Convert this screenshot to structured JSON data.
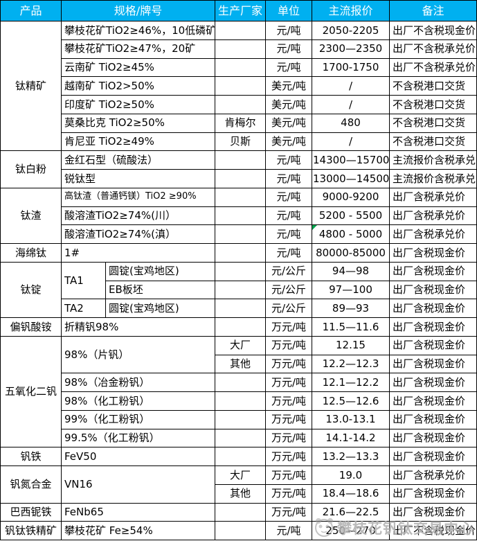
{
  "table": {
    "header": [
      {
        "k": "product",
        "t": "产品"
      },
      {
        "k": "spec",
        "t": "规格/牌号",
        "cs": 2
      },
      {
        "k": "producer",
        "t": "生产厂家"
      },
      {
        "k": "unit",
        "t": "单位"
      },
      {
        "k": "price",
        "t": "主流报价"
      },
      {
        "k": "note",
        "t": "备注"
      }
    ],
    "rows": [
      [
        {
          "k": "product",
          "t": "钛精矿",
          "rs": 7
        },
        {
          "k": "spec",
          "t": "攀枝花矿TiO2≥46%，10低磷矿",
          "cs": 2
        },
        {
          "k": "producer",
          "t": ""
        },
        {
          "k": "unit",
          "t": "元/吨"
        },
        {
          "k": "price",
          "t": "2050-2205"
        },
        {
          "k": "note",
          "t": "出厂不含税现金价"
        }
      ],
      [
        {
          "k": "spec",
          "t": "攀枝花矿TiO2≥47%，20矿",
          "cs": 2
        },
        {
          "k": "producer",
          "t": ""
        },
        {
          "k": "unit",
          "t": "元/吨"
        },
        {
          "k": "price",
          "t": "2300—2350"
        },
        {
          "k": "note",
          "t": "出厂不含税承兑价"
        }
      ],
      [
        {
          "k": "spec",
          "t": "云南矿 TiO2≥45%",
          "cs": 2
        },
        {
          "k": "producer",
          "t": ""
        },
        {
          "k": "unit",
          "t": "元/吨"
        },
        {
          "k": "price",
          "t": "1700-1750"
        },
        {
          "k": "note",
          "t": "出厂不含税承兑价"
        }
      ],
      [
        {
          "k": "spec",
          "t": "越南矿 TiO2>50%",
          "cs": 2
        },
        {
          "k": "producer",
          "t": ""
        },
        {
          "k": "unit",
          "t": "美元/吨"
        },
        {
          "k": "price",
          "t": "/"
        },
        {
          "k": "note",
          "t": "不含税港口交货"
        }
      ],
      [
        {
          "k": "spec",
          "t": "印度矿 TiO2≥50%",
          "cs": 2
        },
        {
          "k": "producer",
          "t": ""
        },
        {
          "k": "unit",
          "t": "美元/吨"
        },
        {
          "k": "price",
          "t": "/"
        },
        {
          "k": "note",
          "t": "不含税港口交货"
        }
      ],
      [
        {
          "k": "spec",
          "t": "莫桑比克 TiO2≥50%",
          "cs": 2
        },
        {
          "k": "producer",
          "t": "肯梅尔"
        },
        {
          "k": "unit",
          "t": "美元/吨"
        },
        {
          "k": "price",
          "t": "480"
        },
        {
          "k": "note",
          "t": "不含税港口交货"
        }
      ],
      [
        {
          "k": "spec",
          "t": "肯尼亚 TiO2≥49%",
          "cs": 2
        },
        {
          "k": "producer",
          "t": "贝斯"
        },
        {
          "k": "unit",
          "t": "美元/吨"
        },
        {
          "k": "price",
          "t": "/"
        },
        {
          "k": "note",
          "t": "不含税港口交货"
        }
      ],
      [
        {
          "k": "product",
          "t": "钛白粉",
          "rs": 2
        },
        {
          "k": "spec",
          "t": "金红石型（硫酸法）",
          "cs": 2
        },
        {
          "k": "producer",
          "t": ""
        },
        {
          "k": "unit",
          "t": "元/吨"
        },
        {
          "k": "price",
          "t": "14300—15700"
        },
        {
          "k": "note",
          "t": "主流报价含税承兑"
        }
      ],
      [
        {
          "k": "spec",
          "t": "锐钛型",
          "cs": 2
        },
        {
          "k": "producer",
          "t": ""
        },
        {
          "k": "unit",
          "t": "元/吨"
        },
        {
          "k": "price",
          "t": "13000—14500"
        },
        {
          "k": "note",
          "t": "主流报价含税承兑"
        }
      ],
      [
        {
          "k": "product",
          "t": "钛渣",
          "rs": 3
        },
        {
          "k": "spec",
          "t": "高钛渣（普通钙镁）TiO2 ≥90%",
          "cs": 2,
          "sm": true
        },
        {
          "k": "producer",
          "t": ""
        },
        {
          "k": "unit",
          "t": "元/吨"
        },
        {
          "k": "price",
          "t": "9000-9200"
        },
        {
          "k": "note",
          "t": "出厂含税承兑价"
        }
      ],
      [
        {
          "k": "spec",
          "t": "酸溶渣TiO2≥74%(川）",
          "cs": 2
        },
        {
          "k": "producer",
          "t": ""
        },
        {
          "k": "unit",
          "t": "元/吨"
        },
        {
          "k": "price",
          "t": "5200 - 5500"
        },
        {
          "k": "note",
          "t": "出厂含税承兑价"
        }
      ],
      [
        {
          "k": "spec",
          "t": "酸溶渣TiO2≥74%(滇）",
          "cs": 2
        },
        {
          "k": "producer",
          "t": ""
        },
        {
          "k": "unit",
          "t": "元/吨"
        },
        {
          "k": "price",
          "t": "4800 - 5000",
          "flag": true
        },
        {
          "k": "note",
          "t": "出厂含税承兑价"
        }
      ],
      [
        {
          "k": "product",
          "t": "海绵钛"
        },
        {
          "k": "spec",
          "t": "1#",
          "cs": 2
        },
        {
          "k": "producer",
          "t": ""
        },
        {
          "k": "unit",
          "t": "元/吨"
        },
        {
          "k": "price",
          "t": "80000-85000"
        },
        {
          "k": "note",
          "t": "出厂含税现金价"
        }
      ],
      [
        {
          "k": "product",
          "t": "钛锭",
          "rs": 3
        },
        {
          "k": "grade",
          "t": "TA1",
          "rs": 2
        },
        {
          "k": "spec",
          "t": "圆锭(宝鸡地区)"
        },
        {
          "k": "producer",
          "t": ""
        },
        {
          "k": "unit",
          "t": "元/公斤"
        },
        {
          "k": "price",
          "t": "94—98"
        },
        {
          "k": "note",
          "t": "出厂含税现金价"
        }
      ],
      [
        {
          "k": "spec",
          "t": "EB板坯"
        },
        {
          "k": "producer",
          "t": ""
        },
        {
          "k": "unit",
          "t": "元/公斤"
        },
        {
          "k": "price",
          "t": "97—100"
        },
        {
          "k": "note",
          "t": "出厂含税现金价"
        }
      ],
      [
        {
          "k": "grade",
          "t": "TA2"
        },
        {
          "k": "spec",
          "t": "圆锭(宝鸡地区)"
        },
        {
          "k": "producer",
          "t": ""
        },
        {
          "k": "unit",
          "t": "元/公斤"
        },
        {
          "k": "price",
          "t": "89—93"
        },
        {
          "k": "note",
          "t": "出厂含税现金价"
        }
      ],
      [
        {
          "k": "product",
          "t": "偏钒酸铵"
        },
        {
          "k": "spec",
          "t": "折精钒98%",
          "cs": 2
        },
        {
          "k": "producer",
          "t": ""
        },
        {
          "k": "unit",
          "t": "万元/吨"
        },
        {
          "k": "price",
          "t": "11.5—11.6"
        },
        {
          "k": "note",
          "t": "出厂含税现金价"
        }
      ],
      [
        {
          "k": "product",
          "t": "五氧化二钒",
          "rs": 6
        },
        {
          "k": "spec",
          "t": "98%（片钒）",
          "cs": 2,
          "rs": 2
        },
        {
          "k": "producer",
          "t": "大厂"
        },
        {
          "k": "unit",
          "t": "万元/吨"
        },
        {
          "k": "price",
          "t": "12.15"
        },
        {
          "k": "note",
          "t": "出厂含税现金价"
        }
      ],
      [
        {
          "k": "producer",
          "t": "其他"
        },
        {
          "k": "unit",
          "t": "万元/吨"
        },
        {
          "k": "price",
          "t": "12.2—12.3"
        },
        {
          "k": "note",
          "t": "出厂含税现金价"
        }
      ],
      [
        {
          "k": "spec",
          "t": "98%（冶金粉钒）",
          "cs": 2
        },
        {
          "k": "producer",
          "t": ""
        },
        {
          "k": "unit",
          "t": "万元/吨"
        },
        {
          "k": "price",
          "t": "12.1—12.2"
        },
        {
          "k": "note",
          "t": "出厂含税现金价"
        }
      ],
      [
        {
          "k": "spec",
          "t": "98%（化工粉钒）",
          "cs": 2
        },
        {
          "k": "producer",
          "t": ""
        },
        {
          "k": "unit",
          "t": "万元/吨"
        },
        {
          "k": "price",
          "t": "12.5—12.6"
        },
        {
          "k": "note",
          "t": "出厂含税现金价"
        }
      ],
      [
        {
          "k": "spec",
          "t": "99%（化工粉钒）",
          "cs": 2
        },
        {
          "k": "producer",
          "t": ""
        },
        {
          "k": "unit",
          "t": "万元/吨"
        },
        {
          "k": "price",
          "t": "13.0-13.1"
        },
        {
          "k": "note",
          "t": "出厂含税现金价"
        }
      ],
      [
        {
          "k": "spec",
          "t": "99.5%（化工粉钒）",
          "cs": 2
        },
        {
          "k": "producer",
          "t": ""
        },
        {
          "k": "unit",
          "t": "万元/吨"
        },
        {
          "k": "price",
          "t": "14.1-14.2"
        },
        {
          "k": "note",
          "t": "出厂含税现金价"
        }
      ],
      [
        {
          "k": "product",
          "t": "钒铁"
        },
        {
          "k": "spec",
          "t": "FeV50",
          "cs": 2
        },
        {
          "k": "producer",
          "t": ""
        },
        {
          "k": "unit",
          "t": "万元/吨"
        },
        {
          "k": "price",
          "t": "13.2—13.3"
        },
        {
          "k": "note",
          "t": "出厂含税现金价"
        }
      ],
      [
        {
          "k": "product",
          "t": "钒氮合金",
          "rs": 2
        },
        {
          "k": "spec",
          "t": "VN16",
          "cs": 2,
          "rs": 2
        },
        {
          "k": "producer",
          "t": "大厂"
        },
        {
          "k": "unit",
          "t": "万元/吨"
        },
        {
          "k": "price",
          "t": "19.0"
        },
        {
          "k": "note",
          "t": "出厂含税承兑价"
        }
      ],
      [
        {
          "k": "producer",
          "t": "其他"
        },
        {
          "k": "unit",
          "t": "万元/吨"
        },
        {
          "k": "price",
          "t": "18.4—18.6"
        },
        {
          "k": "note",
          "t": "出厂含税现金价"
        }
      ],
      [
        {
          "k": "product",
          "t": "巴西铌铁"
        },
        {
          "k": "spec",
          "t": "FeNb65",
          "cs": 2
        },
        {
          "k": "producer",
          "t": ""
        },
        {
          "k": "unit",
          "t": "万元/吨"
        },
        {
          "k": "price",
          "t": "21.6—22.5"
        },
        {
          "k": "note",
          "t": "出厂含税现金价"
        }
      ],
      [
        {
          "k": "product",
          "t": "钒钛铁精矿"
        },
        {
          "k": "spec",
          "t": "攀枝花矿 Fe≥54%",
          "cs": 2
        },
        {
          "k": "producer",
          "t": ""
        },
        {
          "k": "unit",
          "t": "元/吨"
        },
        {
          "k": "price",
          "t": "250—270"
        },
        {
          "k": "note",
          "t": "出厂不含税现金价"
        }
      ]
    ]
  },
  "watermark": {
    "text": "攀枝花钒钛交易中心"
  },
  "colors": {
    "header_bg": "#00B0F0",
    "header_text": "#FFFFFF",
    "border": "#000000",
    "flag_green": "#00A550",
    "watermark_gray": "#828282"
  }
}
